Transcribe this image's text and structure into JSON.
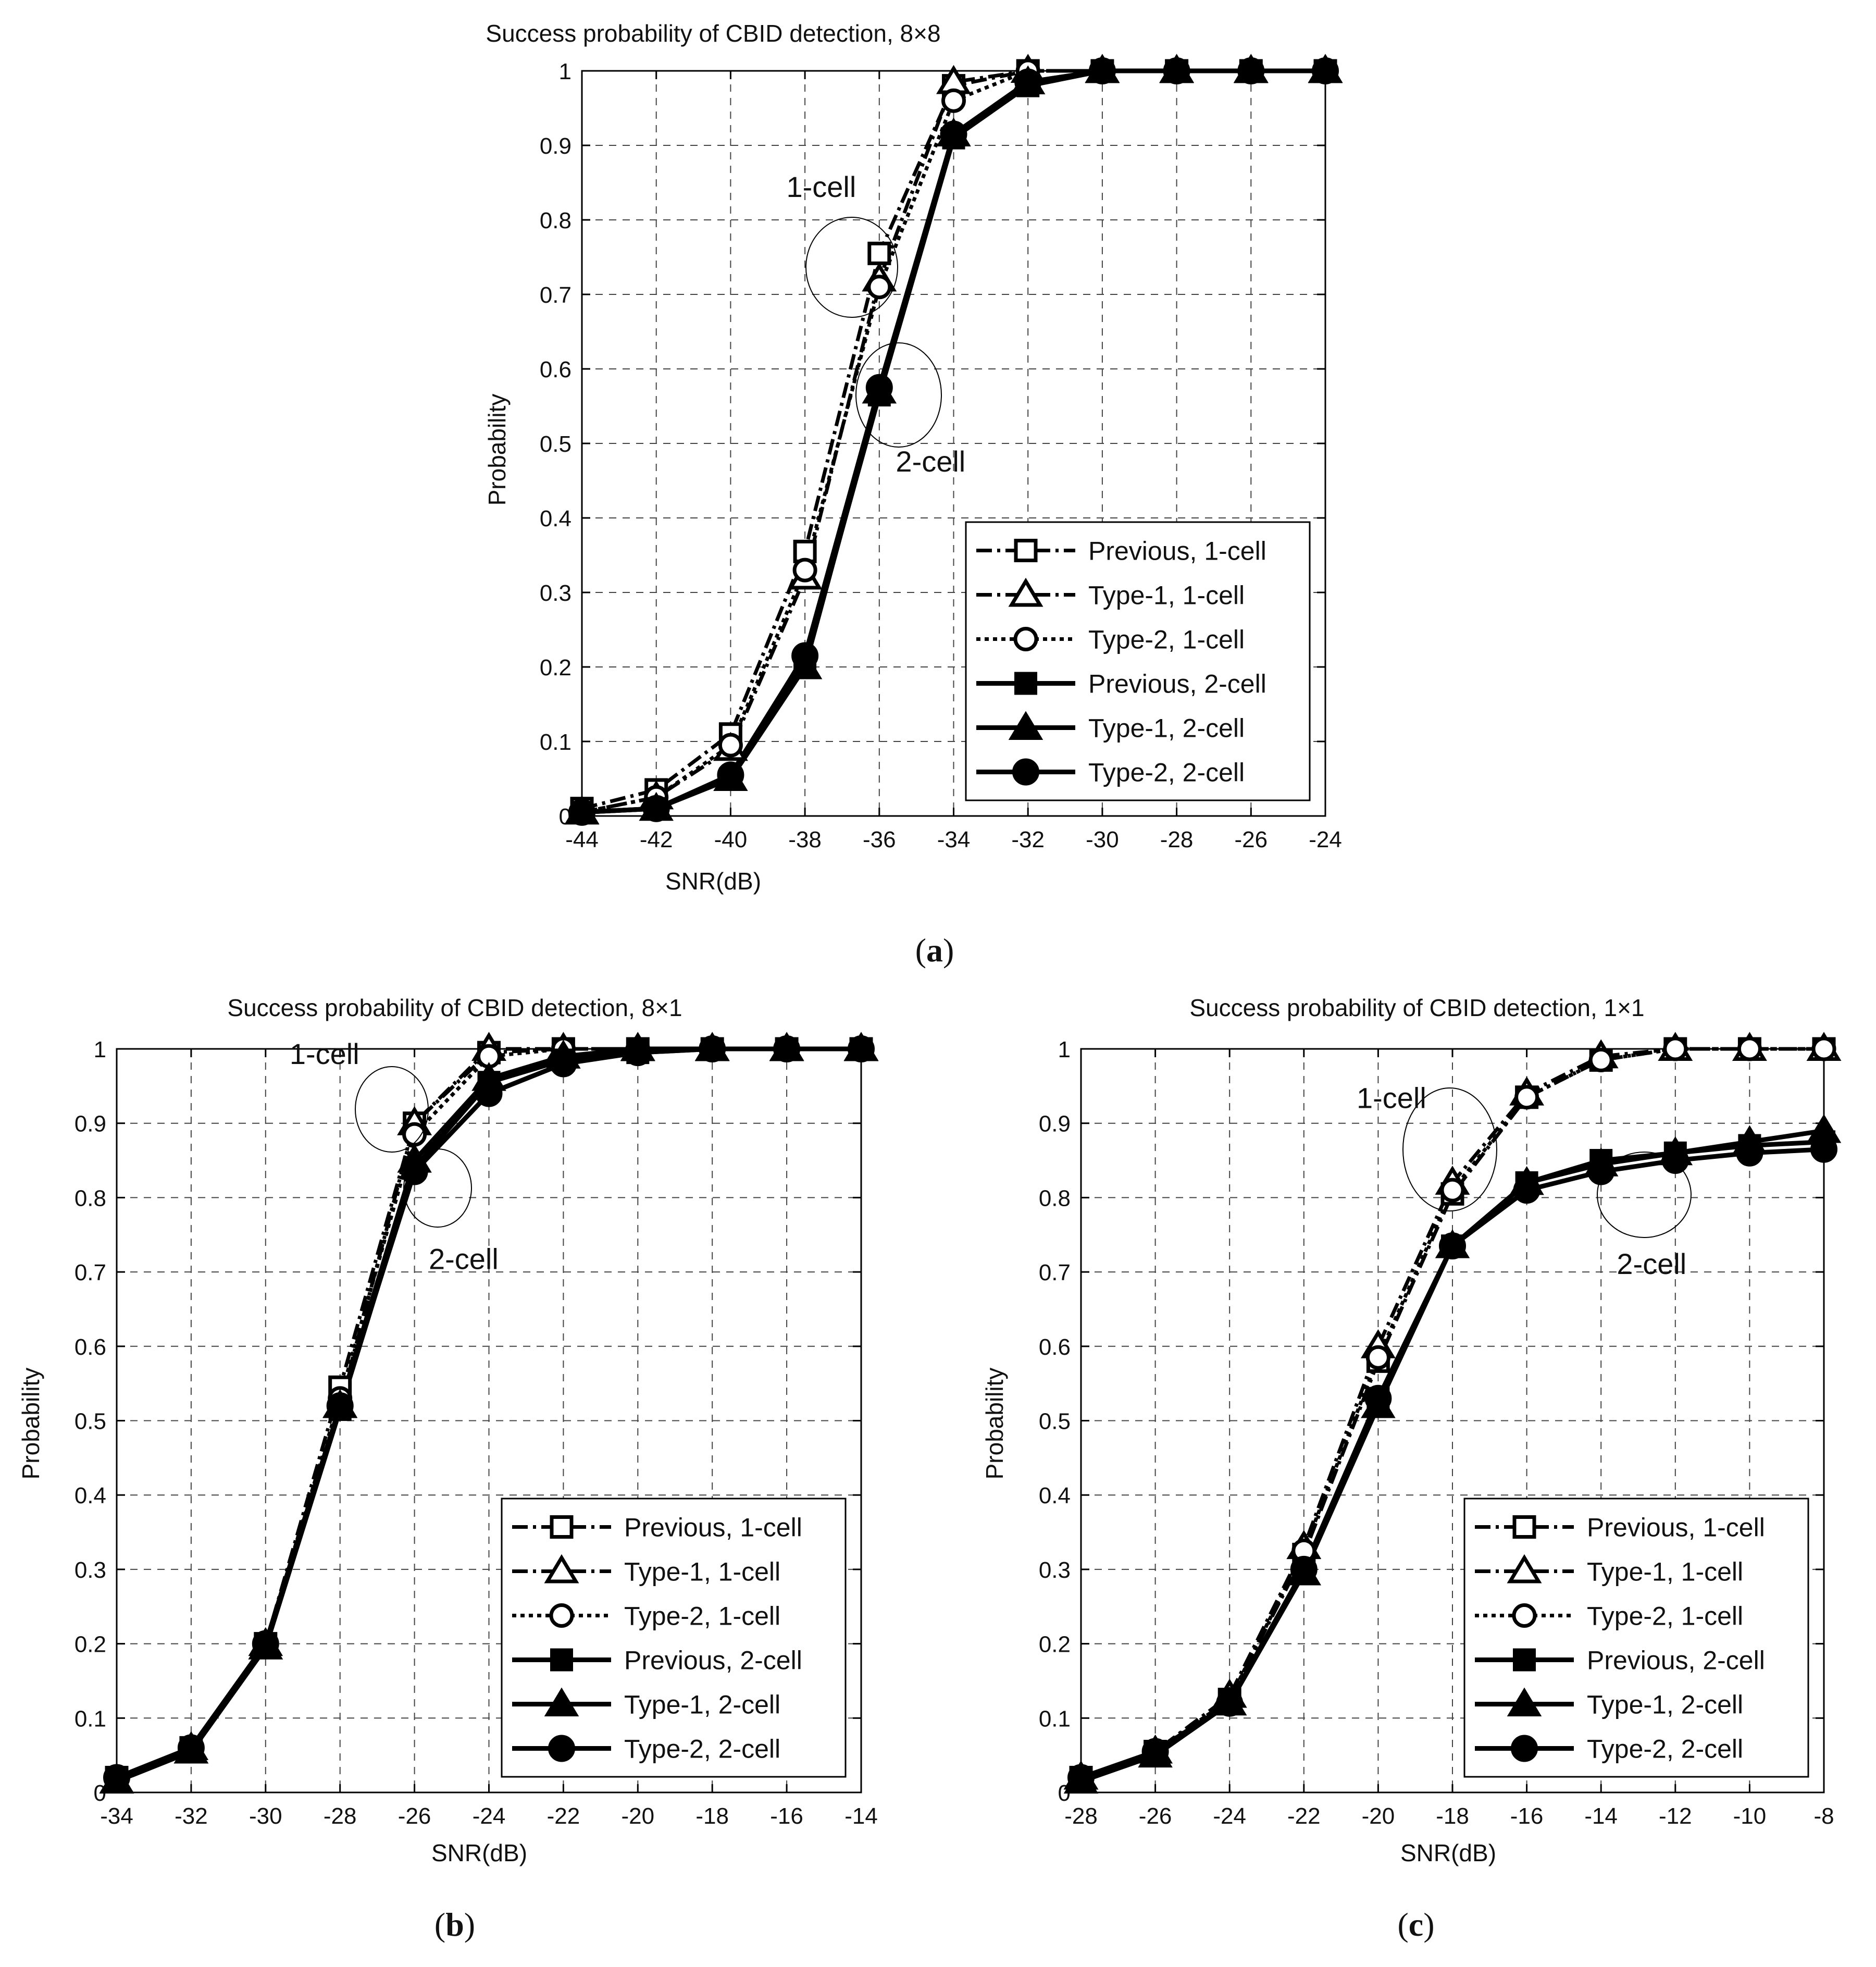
{
  "figure": {
    "captions": [
      "(a)",
      "(b)",
      "(c)"
    ],
    "caption_letters": [
      "a",
      "b",
      "c"
    ]
  },
  "chart_data": [
    {
      "type": "line",
      "title": "Success probability of CBID detection, 8×8",
      "xlabel": "SNR(dB)",
      "ylabel": "Probability",
      "xlim": [
        -44,
        -24
      ],
      "ylim": [
        0,
        1
      ],
      "xticks": [
        -44,
        -42,
        -40,
        -38,
        -36,
        -34,
        -32,
        -30,
        -28,
        -26,
        -24
      ],
      "xtick_labels": [
        "-44",
        "-42",
        "-40",
        "-38",
        "-36",
        "-34",
        "-32",
        "-30",
        "-28",
        "-26",
        "-24"
      ],
      "yticks": [
        0,
        0.1,
        0.2,
        0.3,
        0.4,
        0.5,
        0.6,
        0.7,
        0.8,
        0.9,
        1
      ],
      "ytick_labels": [
        "0",
        "0.1",
        "0.2",
        "0.3",
        "0.4",
        "0.5",
        "0.6",
        "0.7",
        "0.8",
        "0.9",
        "1"
      ],
      "grid": true,
      "legend_position": "bottom-right",
      "annotations": [
        {
          "text": "1-cell",
          "x": -36.3,
          "y": 0.74
        },
        {
          "text": "2-cell",
          "x": -35.6,
          "y": 0.56
        }
      ],
      "series": [
        {
          "name": "Previous, 1-cell",
          "marker": "square-open",
          "line": "dashdot",
          "x": [
            -44,
            -42,
            -40,
            -38,
            -36,
            -34,
            -32,
            -30,
            -28,
            -26,
            -24
          ],
          "values": [
            0.01,
            0.035,
            0.11,
            0.355,
            0.755,
            0.98,
            1,
            1,
            1,
            1,
            1
          ]
        },
        {
          "name": "Type-1, 1-cell",
          "marker": "triangle-open",
          "line": "dashdot",
          "x": [
            -44,
            -42,
            -40,
            -38,
            -36,
            -34,
            -32,
            -30,
            -28,
            -26,
            -24
          ],
          "values": [
            0.005,
            0.025,
            0.09,
            0.32,
            0.72,
            0.985,
            1,
            1,
            1,
            1,
            1
          ]
        },
        {
          "name": "Type-2, 1-cell",
          "marker": "circle-open",
          "line": "dotted",
          "x": [
            -44,
            -42,
            -40,
            -38,
            -36,
            -34,
            -32,
            -30,
            -28,
            -26,
            -24
          ],
          "values": [
            0.005,
            0.025,
            0.095,
            0.33,
            0.71,
            0.96,
            1,
            1,
            1,
            1,
            1
          ]
        },
        {
          "name": "Previous, 2-cell",
          "marker": "square-filled",
          "line": "solid",
          "x": [
            -44,
            -42,
            -40,
            -38,
            -36,
            -34,
            -32,
            -30,
            -28,
            -26,
            -24
          ],
          "values": [
            0.005,
            0.01,
            0.05,
            0.205,
            0.565,
            0.91,
            0.98,
            1,
            1,
            1,
            1
          ]
        },
        {
          "name": "Type-1, 2-cell",
          "marker": "triangle-filled",
          "line": "solid",
          "x": [
            -44,
            -42,
            -40,
            -38,
            -36,
            -34,
            -32,
            -30,
            -28,
            -26,
            -24
          ],
          "values": [
            0.005,
            0.01,
            0.05,
            0.2,
            0.57,
            0.915,
            0.985,
            1,
            1,
            1,
            1
          ]
        },
        {
          "name": "Type-2, 2-cell",
          "marker": "circle-filled",
          "line": "solid",
          "x": [
            -44,
            -42,
            -40,
            -38,
            -36,
            -34,
            -32,
            -30,
            -28,
            -26,
            -24
          ],
          "values": [
            0.005,
            0.01,
            0.055,
            0.215,
            0.575,
            0.915,
            0.985,
            1,
            1,
            1,
            1
          ]
        }
      ]
    },
    {
      "type": "line",
      "title": "Success probability of CBID detection, 8×1",
      "xlabel": "SNR(dB)",
      "ylabel": "Probability",
      "xlim": [
        -34,
        -14
      ],
      "ylim": [
        0,
        1
      ],
      "xticks": [
        -34,
        -32,
        -30,
        -28,
        -26,
        -24,
        -22,
        -20,
        -18,
        -16,
        -14
      ],
      "xtick_labels": [
        "-34",
        "-32",
        "-30",
        "-28",
        "-26",
        "-24",
        "-22",
        "-20",
        "-18",
        "-16",
        "-14"
      ],
      "yticks": [
        0,
        0.1,
        0.2,
        0.3,
        0.4,
        0.5,
        0.6,
        0.7,
        0.8,
        0.9,
        1
      ],
      "ytick_labels": [
        "0",
        "0.1",
        "0.2",
        "0.3",
        "0.4",
        "0.5",
        "0.6",
        "0.7",
        "0.8",
        "0.9",
        "1"
      ],
      "grid": true,
      "legend_position": "bottom-right",
      "annotations": [
        {
          "text": "1-cell",
          "x": -26.6,
          "y": 0.92
        },
        {
          "text": "2-cell",
          "x": -25.1,
          "y": 0.83
        }
      ],
      "series": [
        {
          "name": "Previous, 1-cell",
          "marker": "square-open",
          "line": "dashdot",
          "x": [
            -34,
            -32,
            -30,
            -28,
            -26,
            -24,
            -22,
            -20,
            -18,
            -16,
            -14
          ],
          "values": [
            0.02,
            0.06,
            0.2,
            0.545,
            0.9,
            0.995,
            1,
            1,
            1,
            1,
            1
          ]
        },
        {
          "name": "Type-1, 1-cell",
          "marker": "triangle-open",
          "line": "dashdot",
          "x": [
            -34,
            -32,
            -30,
            -28,
            -26,
            -24,
            -22,
            -20,
            -18,
            -16,
            -14
          ],
          "values": [
            0.015,
            0.055,
            0.195,
            0.52,
            0.9,
            1,
            1,
            1,
            1,
            1,
            1
          ]
        },
        {
          "name": "Type-2, 1-cell",
          "marker": "circle-open",
          "line": "dotted",
          "x": [
            -34,
            -32,
            -30,
            -28,
            -26,
            -24,
            -22,
            -20,
            -18,
            -16,
            -14
          ],
          "values": [
            0.02,
            0.06,
            0.2,
            0.53,
            0.885,
            0.99,
            1,
            1,
            1,
            1,
            1
          ]
        },
        {
          "name": "Previous, 2-cell",
          "marker": "square-filled",
          "line": "solid",
          "x": [
            -34,
            -32,
            -30,
            -28,
            -26,
            -24,
            -22,
            -20,
            -18,
            -16,
            -14
          ],
          "values": [
            0.015,
            0.055,
            0.195,
            0.515,
            0.84,
            0.955,
            0.985,
            0.995,
            1,
            1,
            1
          ]
        },
        {
          "name": "Type-1, 2-cell",
          "marker": "triangle-filled",
          "line": "solid",
          "x": [
            -34,
            -32,
            -30,
            -28,
            -26,
            -24,
            -22,
            -20,
            -18,
            -16,
            -14
          ],
          "values": [
            0.015,
            0.06,
            0.2,
            0.52,
            0.85,
            0.96,
            0.99,
            1,
            1,
            1,
            1
          ]
        },
        {
          "name": "Type-2, 2-cell",
          "marker": "circle-filled",
          "line": "solid",
          "x": [
            -34,
            -32,
            -30,
            -28,
            -26,
            -24,
            -22,
            -20,
            -18,
            -16,
            -14
          ],
          "values": [
            0.02,
            0.06,
            0.2,
            0.52,
            0.835,
            0.94,
            0.98,
            0.995,
            1,
            1,
            1
          ]
        }
      ]
    },
    {
      "type": "line",
      "title": "Success probability of CBID detection, 1×1",
      "xlabel": "SNR(dB)",
      "ylabel": "Probability",
      "xlim": [
        -28,
        -8
      ],
      "ylim": [
        0,
        1
      ],
      "xticks": [
        -28,
        -26,
        -24,
        -22,
        -20,
        -18,
        -16,
        -14,
        -12,
        -10,
        -8
      ],
      "xtick_labels": [
        "-28",
        "-26",
        "-24",
        "-22",
        "-20",
        "-18",
        "-16",
        "-14",
        "-12",
        "-10",
        "-8"
      ],
      "yticks": [
        0,
        0.1,
        0.2,
        0.3,
        0.4,
        0.5,
        0.6,
        0.7,
        0.8,
        0.9,
        1
      ],
      "ytick_labels": [
        "0",
        "0.1",
        "0.2",
        "0.3",
        "0.4",
        "0.5",
        "0.6",
        "0.7",
        "0.8",
        "0.9",
        "1"
      ],
      "grid": true,
      "legend_position": "bottom-right",
      "annotations": [
        {
          "text": "1-cell",
          "x": -18.1,
          "y": 0.84
        },
        {
          "text": "2-cell",
          "x": -13.9,
          "y": 0.82
        }
      ],
      "series": [
        {
          "name": "Previous, 1-cell",
          "marker": "square-open",
          "line": "dashdot",
          "x": [
            -28,
            -26,
            -24,
            -22,
            -20,
            -18,
            -16,
            -14,
            -12,
            -10,
            -8
          ],
          "values": [
            0.02,
            0.055,
            0.125,
            0.32,
            0.58,
            0.805,
            0.935,
            0.985,
            1,
            1,
            1
          ]
        },
        {
          "name": "Type-1, 1-cell",
          "marker": "triangle-open",
          "line": "dashdot",
          "x": [
            -28,
            -26,
            -24,
            -22,
            -20,
            -18,
            -16,
            -14,
            -12,
            -10,
            -8
          ],
          "values": [
            0.02,
            0.055,
            0.13,
            0.33,
            0.6,
            0.82,
            0.94,
            0.99,
            1,
            1,
            1
          ]
        },
        {
          "name": "Type-2, 1-cell",
          "marker": "circle-open",
          "line": "dotted",
          "x": [
            -28,
            -26,
            -24,
            -22,
            -20,
            -18,
            -16,
            -14,
            -12,
            -10,
            -8
          ],
          "values": [
            0.02,
            0.055,
            0.125,
            0.325,
            0.585,
            0.81,
            0.935,
            0.985,
            1,
            1,
            1
          ]
        },
        {
          "name": "Previous, 2-cell",
          "marker": "square-filled",
          "line": "solid",
          "x": [
            -28,
            -26,
            -24,
            -22,
            -20,
            -18,
            -16,
            -14,
            -12,
            -10,
            -8
          ],
          "values": [
            0.015,
            0.05,
            0.12,
            0.3,
            0.53,
            0.735,
            0.82,
            0.85,
            0.86,
            0.87,
            0.875
          ]
        },
        {
          "name": "Type-1, 2-cell",
          "marker": "triangle-filled",
          "line": "solid",
          "x": [
            -28,
            -26,
            -24,
            -22,
            -20,
            -18,
            -16,
            -14,
            -12,
            -10,
            -8
          ],
          "values": [
            0.015,
            0.05,
            0.12,
            0.295,
            0.52,
            0.735,
            0.82,
            0.845,
            0.86,
            0.875,
            0.89
          ]
        },
        {
          "name": "Type-2, 2-cell",
          "marker": "circle-filled",
          "line": "solid",
          "x": [
            -28,
            -26,
            -24,
            -22,
            -20,
            -18,
            -16,
            -14,
            -12,
            -10,
            -8
          ],
          "values": [
            0.02,
            0.055,
            0.12,
            0.3,
            0.53,
            0.735,
            0.81,
            0.835,
            0.85,
            0.86,
            0.865
          ]
        }
      ]
    }
  ]
}
